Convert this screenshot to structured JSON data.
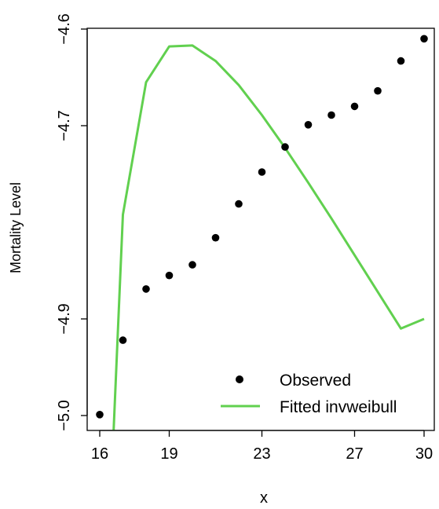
{
  "chart_data": {
    "type": "line",
    "title": "",
    "xlabel": "x",
    "ylabel": "Mortality Level",
    "xlim": [
      16,
      30
    ],
    "ylim": [
      -5.0,
      -4.6
    ],
    "x_ticks": [
      16,
      19,
      23,
      27,
      30
    ],
    "y_ticks": [
      -5.0,
      -4.9,
      -4.7,
      -4.6
    ],
    "x_tick_labels": [
      "16",
      "19",
      "23",
      "27",
      "30"
    ],
    "y_tick_labels": [
      "−5.0",
      "−4.9",
      "−4.7",
      "−4.6"
    ],
    "grid": false,
    "legend_position": "bottom-right",
    "series": [
      {
        "name": "Observed",
        "kind": "points",
        "color": "#000000",
        "x": [
          16,
          17,
          18,
          19,
          20,
          21,
          22,
          23,
          24,
          25,
          26,
          27,
          28,
          29,
          30
        ],
        "y": [
          -4.999,
          -4.922,
          -4.869,
          -4.855,
          -4.844,
          -4.816,
          -4.781,
          -4.748,
          -4.722,
          -4.699,
          -4.689,
          -4.68,
          -4.664,
          -4.633,
          -4.61
        ]
      },
      {
        "name": "Fitted invweibull",
        "kind": "line",
        "color": "#61D04F",
        "x": [
          16.6,
          17,
          18,
          19,
          20,
          21,
          22,
          23,
          24,
          25,
          26,
          27,
          28,
          29,
          30
        ],
        "y": [
          -5.015,
          -4.792,
          -4.655,
          -4.618,
          -4.617,
          -4.633,
          -4.658,
          -4.689,
          -4.723,
          -4.759,
          -4.796,
          -4.834,
          -4.872,
          -4.91,
          -4.9
        ]
      }
    ]
  }
}
